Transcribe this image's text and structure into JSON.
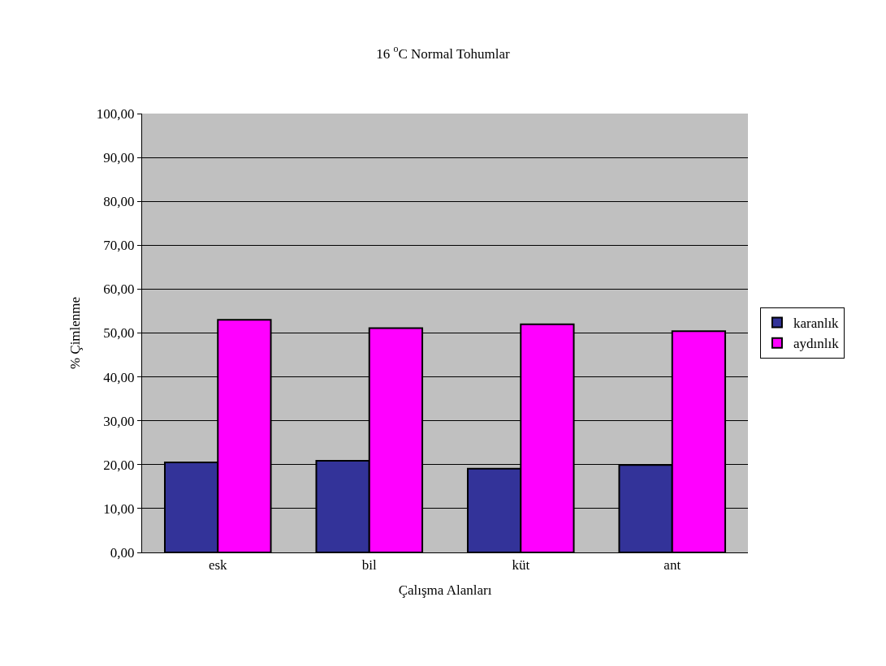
{
  "chart_data": {
    "type": "bar",
    "title": "16 $^{o}$C Normal Tohumlar",
    "xlabel": "Çalışma Alanları",
    "ylabel": "% Çimlenme",
    "categories": [
      "esk",
      "bil",
      "küt",
      "ant"
    ],
    "series": [
      {
        "name": "karanlık",
        "color": "#333399",
        "values": [
          20.5,
          20.9,
          19.1,
          19.9
        ]
      },
      {
        "name": "aydınlık",
        "color": "#ff00ff",
        "values": [
          53.0,
          51.1,
          52.0,
          50.4
        ]
      }
    ],
    "ylim": [
      0,
      100
    ],
    "yticks": [
      {
        "value": 0,
        "label": "0,00"
      },
      {
        "value": 10,
        "label": "10,00"
      },
      {
        "value": 20,
        "label": "20,00"
      },
      {
        "value": 30,
        "label": "30,00"
      },
      {
        "value": 40,
        "label": "40,00"
      },
      {
        "value": 50,
        "label": "50,00"
      },
      {
        "value": 60,
        "label": "60,00"
      },
      {
        "value": 70,
        "label": "70,00"
      },
      {
        "value": 80,
        "label": "80,00"
      },
      {
        "value": 90,
        "label": "90,00"
      },
      {
        "value": 100,
        "label": "100,00"
      }
    ],
    "grid": "y",
    "legend": "right"
  }
}
